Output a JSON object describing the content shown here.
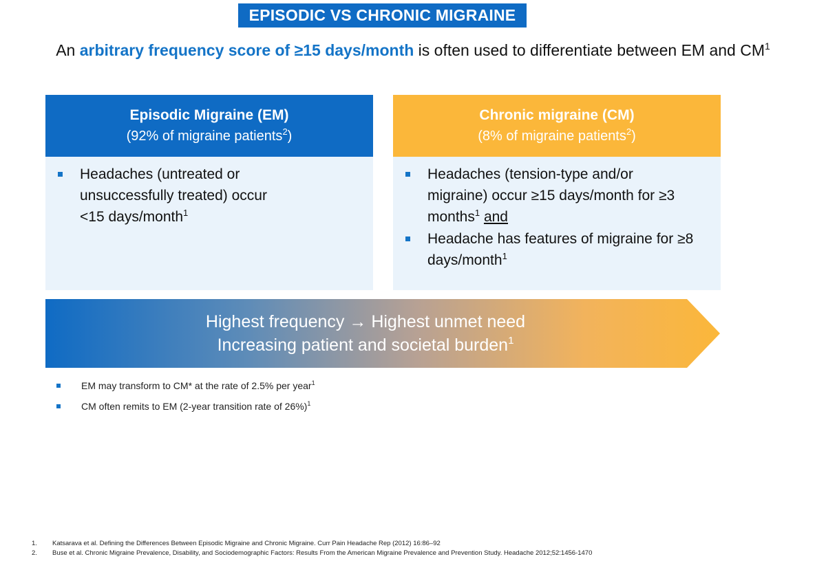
{
  "title": "EPISODIC VS CHRONIC MIGRAINE",
  "subtitle": {
    "prefix": "An ",
    "highlight": "arbitrary frequency score of ≥15 days/month",
    "suffix": " is often used to differentiate between EM and CM",
    "sup": "1"
  },
  "em_card": {
    "title": "Episodic Migraine (EM)",
    "sub": "(92% of migraine patients",
    "sub_sup": "2",
    "sub_close": ")",
    "bullets": [
      {
        "text": "Headaches (untreated or unsuccessfully treated) occur <15 days/month",
        "sup": "1"
      }
    ]
  },
  "cm_card": {
    "title": "Chronic migraine (CM)",
    "sub": "(8% of migraine patients",
    "sub_sup": "2",
    "sub_close": ")",
    "bullets": [
      {
        "text": "Headaches (tension-type and/or migraine) occur ≥15 days/month for ≥3 months",
        "sup": "1",
        "tail": "and"
      },
      {
        "text": "Headache has features of migraine for ≥8 days/month",
        "sup": "1"
      }
    ]
  },
  "arrow": {
    "line1": "Highest frequency → Highest unmet need",
    "line2": "Increasing patient and societal burden",
    "line2_sup": "1"
  },
  "notes": [
    {
      "text": "EM may transform to CM* at the rate of 2.5% per year",
      "sup": "1"
    },
    {
      "text": "CM often remits to EM (2-year transition rate of 26%)",
      "sup": "1"
    }
  ],
  "references": [
    {
      "num": "1.",
      "text": "Katsarava et al. Defining the Differences Between Episodic Migraine and Chronic Migraine. Curr Pain Headache Rep (2012) 16:86–92"
    },
    {
      "num": "2.",
      "text": "Buse et al. Chronic Migraine Prevalence, Disability, and Sociodemographic Factors: Results From the American Migraine Prevalence and Prevention Study. Headache 2012;52:1456-1470"
    }
  ],
  "colors": {
    "blue": "#0f6bc4",
    "orange": "#fbb73a",
    "card_bg": "#eaf3fb"
  }
}
